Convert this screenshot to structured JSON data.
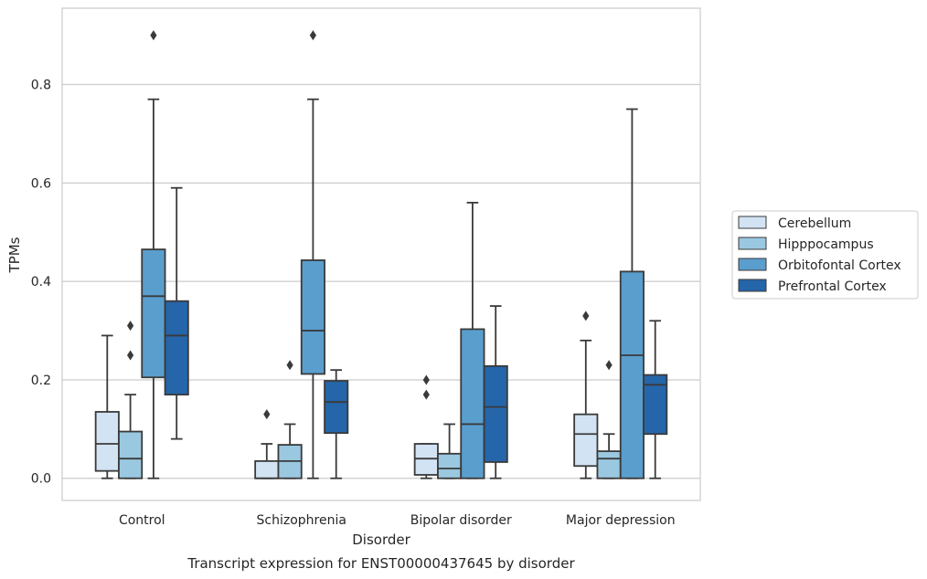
{
  "caption": "Transcript expression for ENST00000437645 by disorder",
  "chart_data": {
    "type": "box",
    "title": "",
    "xlabel": "Disorder",
    "ylabel": "TPMs",
    "ylim": [
      -0.045,
      0.955
    ],
    "yticks": [
      0.0,
      0.2,
      0.4,
      0.6,
      0.8
    ],
    "ytick_labels": [
      "0.0",
      "0.2",
      "0.4",
      "0.6",
      "0.8"
    ],
    "grid": "horizontal",
    "legend_position": "outside-right",
    "categories": [
      "Control",
      "Schizophrenia",
      "Bipolar disorder",
      "Major depression"
    ],
    "series": [
      {
        "name": "Cerebellum",
        "color": "#d2e3f3",
        "boxes": [
          {
            "q1": 0.015,
            "median": 0.07,
            "q3": 0.135,
            "whisker_low": 0.0,
            "whisker_high": 0.29,
            "outliers": []
          },
          {
            "q1": 0.0,
            "median": 0.0,
            "q3": 0.035,
            "whisker_low": 0.0,
            "whisker_high": 0.07,
            "outliers": [
              0.13
            ]
          },
          {
            "q1": 0.007,
            "median": 0.04,
            "q3": 0.07,
            "whisker_low": 0.0,
            "whisker_high": 0.07,
            "outliers": [
              0.17,
              0.2
            ]
          },
          {
            "q1": 0.025,
            "median": 0.09,
            "q3": 0.13,
            "whisker_low": 0.0,
            "whisker_high": 0.28,
            "outliers": [
              0.33
            ]
          }
        ]
      },
      {
        "name": "Hipppocampus",
        "color": "#9ac8e0",
        "boxes": [
          {
            "q1": 0.0,
            "median": 0.04,
            "q3": 0.095,
            "whisker_low": 0.0,
            "whisker_high": 0.17,
            "outliers": [
              0.25,
              0.31
            ]
          },
          {
            "q1": 0.0,
            "median": 0.035,
            "q3": 0.068,
            "whisker_low": 0.0,
            "whisker_high": 0.11,
            "outliers": [
              0.23
            ]
          },
          {
            "q1": 0.0,
            "median": 0.02,
            "q3": 0.05,
            "whisker_low": 0.0,
            "whisker_high": 0.11,
            "outliers": []
          },
          {
            "q1": 0.0,
            "median": 0.04,
            "q3": 0.055,
            "whisker_low": 0.0,
            "whisker_high": 0.09,
            "outliers": [
              0.23
            ]
          }
        ]
      },
      {
        "name": "Orbitofontal Cortex",
        "color": "#5a9ecd",
        "boxes": [
          {
            "q1": 0.205,
            "median": 0.37,
            "q3": 0.465,
            "whisker_low": 0.0,
            "whisker_high": 0.77,
            "outliers": [
              0.9
            ]
          },
          {
            "q1": 0.212,
            "median": 0.3,
            "q3": 0.443,
            "whisker_low": 0.0,
            "whisker_high": 0.77,
            "outliers": [
              0.9
            ]
          },
          {
            "q1": 0.0,
            "median": 0.11,
            "q3": 0.303,
            "whisker_low": 0.0,
            "whisker_high": 0.56,
            "outliers": []
          },
          {
            "q1": 0.0,
            "median": 0.25,
            "q3": 0.42,
            "whisker_low": 0.0,
            "whisker_high": 0.75,
            "outliers": []
          }
        ]
      },
      {
        "name": "Prefrontal Cortex",
        "color": "#2565a9",
        "boxes": [
          {
            "q1": 0.17,
            "median": 0.29,
            "q3": 0.36,
            "whisker_low": 0.08,
            "whisker_high": 0.59,
            "outliers": []
          },
          {
            "q1": 0.092,
            "median": 0.155,
            "q3": 0.198,
            "whisker_low": 0.0,
            "whisker_high": 0.22,
            "outliers": []
          },
          {
            "q1": 0.033,
            "median": 0.145,
            "q3": 0.228,
            "whisker_low": 0.0,
            "whisker_high": 0.35,
            "outliers": []
          },
          {
            "q1": 0.09,
            "median": 0.19,
            "q3": 0.21,
            "whisker_low": 0.0,
            "whisker_high": 0.32,
            "outliers": []
          }
        ]
      }
    ]
  }
}
